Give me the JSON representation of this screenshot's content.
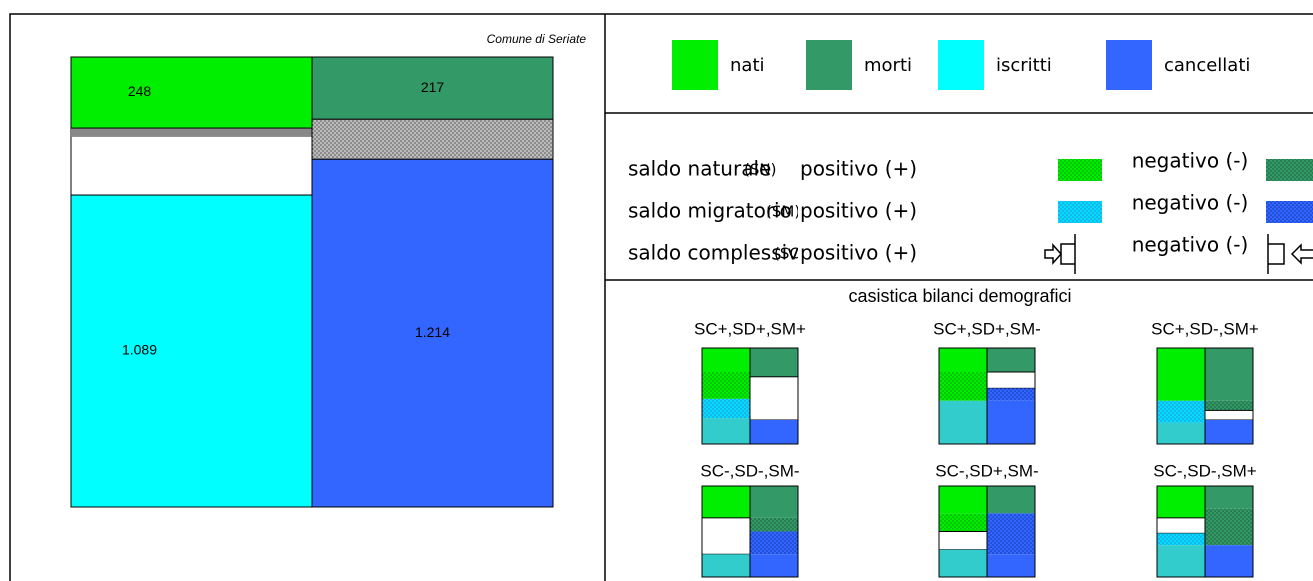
{
  "chart_data": {
    "type": "bar",
    "subtitle": "Comune di Seriate",
    "series": [
      {
        "name": "nati",
        "color": "#00ee00",
        "values": [
          248
        ]
      },
      {
        "name": "morti",
        "color": "#339966",
        "values": [
          217
        ]
      },
      {
        "name": "iscritti",
        "color": "#00ffff",
        "values": [
          1089
        ],
        "value_labels": [
          "1.089"
        ]
      },
      {
        "name": "cancellati",
        "color": "#3366ff",
        "values": [
          1214
        ],
        "value_labels": [
          "1.214"
        ]
      }
    ]
  },
  "key": {
    "rows": [
      {
        "label": "saldo naturale",
        "code": "(SN)",
        "positive": "positivo (+)",
        "negative": "negativo (-)"
      },
      {
        "label": "saldo migratorio",
        "code": "(SM)",
        "positive": "positivo (+)",
        "negative": "negativo (-)"
      },
      {
        "label": "saldo complessivo",
        "code": "(SC)",
        "positive": "positivo (+)",
        "negative": "negativo (-)"
      }
    ]
  },
  "cases": {
    "title": "casistica bilanci demografici",
    "labels": [
      "SC+,SD+,SM+",
      "SC+,SD+,SM-",
      "SC+,SD-,SM+",
      "SC-,SD-,SM-",
      "SC-,SD+,SM-",
      "SC-,SD-,SM+"
    ]
  }
}
